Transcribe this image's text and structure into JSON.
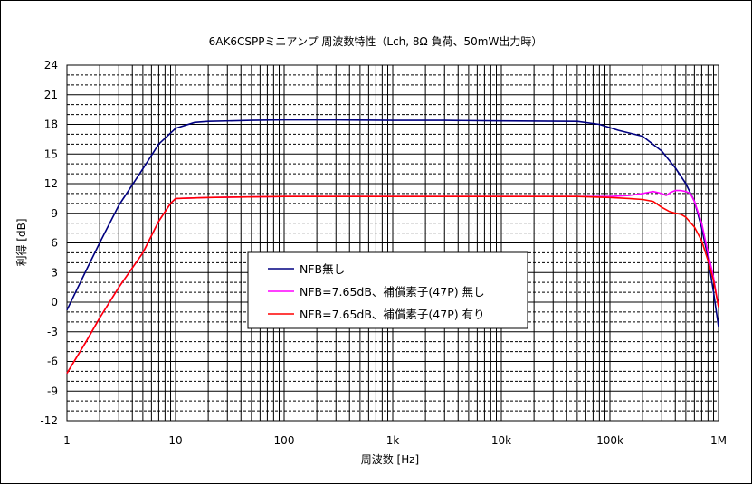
{
  "chart_data": {
    "type": "line",
    "title": "6AK6CSPPミニアンプ 周波数特性（Lch, 8Ω 負荷、50mW出力時）",
    "xlabel": "周波数 [Hz]",
    "ylabel": "利得 [dB]",
    "x_scale": "log",
    "xlim": [
      1,
      1000000
    ],
    "ylim": [
      -12,
      24
    ],
    "x_ticks": [
      {
        "v": 1,
        "label": "1"
      },
      {
        "v": 10,
        "label": "10"
      },
      {
        "v": 100,
        "label": "100"
      },
      {
        "v": 1000,
        "label": "1k"
      },
      {
        "v": 10000,
        "label": "10k"
      },
      {
        "v": 100000,
        "label": "100k"
      },
      {
        "v": 1000000,
        "label": "1M"
      }
    ],
    "y_ticks": [
      24,
      21,
      18,
      15,
      12,
      9,
      6,
      3,
      0,
      -3,
      -6,
      -9,
      -12
    ],
    "grid": true,
    "legend_position": "center",
    "series": [
      {
        "name": "NFB無し",
        "color": "#000080",
        "points": [
          [
            1,
            -0.8
          ],
          [
            1.5,
            3.2
          ],
          [
            2,
            6.0
          ],
          [
            3,
            9.8
          ],
          [
            5,
            13.5
          ],
          [
            7,
            16.0
          ],
          [
            10,
            17.6
          ],
          [
            15,
            18.2
          ],
          [
            20,
            18.3
          ],
          [
            50,
            18.4
          ],
          [
            100,
            18.45
          ],
          [
            300,
            18.45
          ],
          [
            1000,
            18.4
          ],
          [
            3000,
            18.4
          ],
          [
            10000,
            18.35
          ],
          [
            50000,
            18.3
          ],
          [
            80000,
            18.0
          ],
          [
            120000,
            17.4
          ],
          [
            200000,
            16.8
          ],
          [
            300000,
            15.3
          ],
          [
            400000,
            13.6
          ],
          [
            500000,
            12.0
          ],
          [
            600000,
            10.2
          ],
          [
            700000,
            7.5
          ],
          [
            800000,
            4.5
          ],
          [
            900000,
            1.0
          ],
          [
            1000000,
            -2.5
          ]
        ]
      },
      {
        "name": "NFB=7.65dB、補償素子(47P) 無し",
        "color": "#ff00ff",
        "points": [
          [
            1,
            -7.2
          ],
          [
            1.5,
            -4.0
          ],
          [
            2,
            -1.6
          ],
          [
            3,
            1.5
          ],
          [
            5,
            5.0
          ],
          [
            7,
            8.2
          ],
          [
            9,
            10.0
          ],
          [
            10,
            10.5
          ],
          [
            20,
            10.6
          ],
          [
            100,
            10.7
          ],
          [
            1000,
            10.7
          ],
          [
            10000,
            10.7
          ],
          [
            50000,
            10.7
          ],
          [
            100000,
            10.7
          ],
          [
            150000,
            10.8
          ],
          [
            200000,
            11.0
          ],
          [
            250000,
            11.2
          ],
          [
            300000,
            11.0
          ],
          [
            330000,
            10.8
          ],
          [
            360000,
            11.1
          ],
          [
            400000,
            11.3
          ],
          [
            450000,
            11.3
          ],
          [
            500000,
            11.2
          ],
          [
            550000,
            11.0
          ],
          [
            600000,
            10.2
          ],
          [
            700000,
            8.0
          ],
          [
            800000,
            5.0
          ],
          [
            900000,
            2.5
          ],
          [
            1000000,
            -0.5
          ]
        ]
      },
      {
        "name": "NFB=7.65dB、補償素子(47P) 有り",
        "color": "#ff0000",
        "points": [
          [
            1,
            -7.2
          ],
          [
            1.5,
            -4.0
          ],
          [
            2,
            -1.6
          ],
          [
            3,
            1.5
          ],
          [
            5,
            5.0
          ],
          [
            7,
            8.2
          ],
          [
            9,
            10.0
          ],
          [
            10,
            10.5
          ],
          [
            20,
            10.6
          ],
          [
            100,
            10.7
          ],
          [
            1000,
            10.7
          ],
          [
            10000,
            10.7
          ],
          [
            50000,
            10.7
          ],
          [
            100000,
            10.6
          ],
          [
            150000,
            10.5
          ],
          [
            200000,
            10.4
          ],
          [
            250000,
            10.2
          ],
          [
            300000,
            9.6
          ],
          [
            350000,
            9.2
          ],
          [
            400000,
            9.0
          ],
          [
            450000,
            8.9
          ],
          [
            500000,
            8.6
          ],
          [
            600000,
            7.6
          ],
          [
            700000,
            6.2
          ],
          [
            800000,
            4.2
          ],
          [
            900000,
            2.2
          ],
          [
            1000000,
            -0.5
          ]
        ]
      }
    ]
  }
}
